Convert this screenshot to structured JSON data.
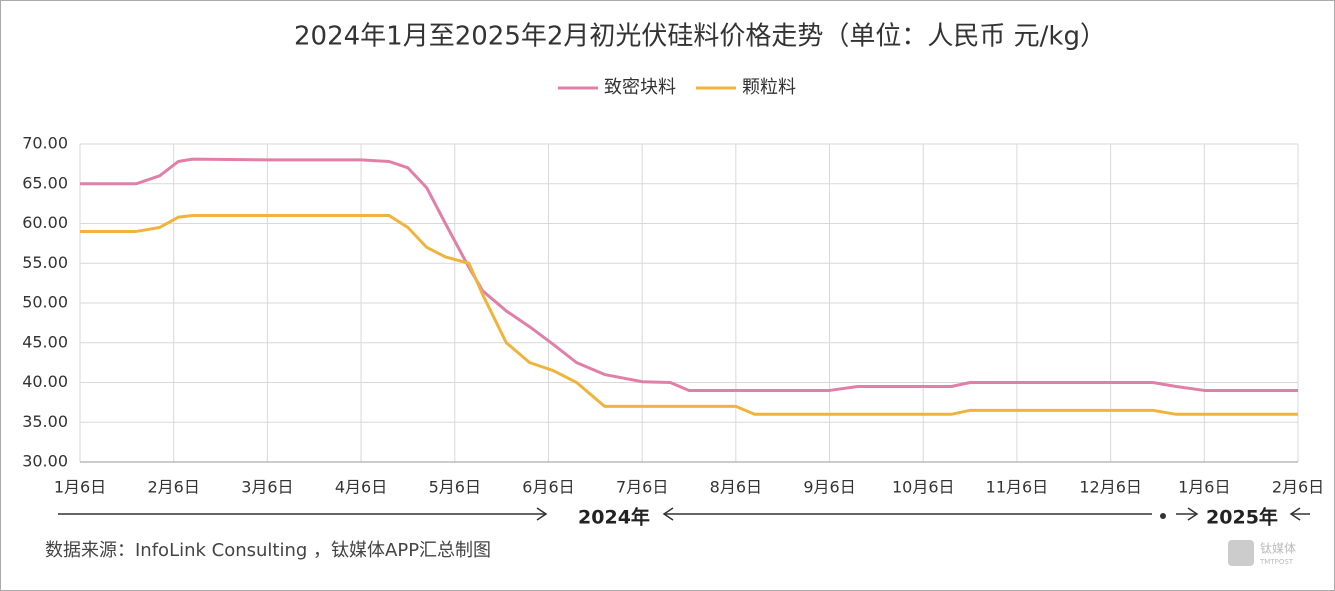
{
  "chart_data": {
    "type": "line",
    "title": "2024年1月至2025年2月初光伏硅料价格走势（单位：人民币 元/kg）",
    "x": [
      0,
      0.6,
      0.85,
      1.05,
      1.2,
      2,
      3,
      3.3,
      3.5,
      3.7,
      3.9,
      4.15,
      4.3,
      4.55,
      4.8,
      5.05,
      5.3,
      5.6,
      6,
      6.3,
      6.5,
      7,
      7.2,
      8,
      8.3,
      9,
      9.3,
      9.5,
      10,
      11,
      11.45,
      11.7,
      12,
      13
    ],
    "series": [
      {
        "name": "致密块料",
        "color": "#e17fa9",
        "values": [
          65,
          65,
          66,
          67.8,
          68.1,
          68,
          68,
          67.8,
          67,
          64.5,
          60,
          54.5,
          51.5,
          49,
          47,
          44.8,
          42.5,
          41,
          40.1,
          40,
          39,
          39,
          39,
          39,
          39.5,
          39.5,
          39.5,
          40,
          40,
          40,
          40,
          39.5,
          39,
          39
        ]
      },
      {
        "name": "颗粒料",
        "color": "#f0b43c",
        "values": [
          59,
          59,
          59.5,
          60.8,
          61,
          61,
          61,
          61,
          59.5,
          57,
          55.8,
          55,
          51,
          45,
          42.5,
          41.5,
          40,
          37,
          37,
          37,
          37,
          37,
          36,
          36,
          36,
          36,
          36,
          36.5,
          36.5,
          36.5,
          36.5,
          36,
          36,
          36
        ]
      }
    ],
    "xlim": [
      0,
      13
    ],
    "xticks": [
      {
        "value": 0,
        "label": "1月6日"
      },
      {
        "value": 1,
        "label": "2月6日"
      },
      {
        "value": 2,
        "label": "3月6日"
      },
      {
        "value": 3,
        "label": "4月6日"
      },
      {
        "value": 4,
        "label": "5月6日"
      },
      {
        "value": 5,
        "label": "6月6日"
      },
      {
        "value": 6,
        "label": "7月6日"
      },
      {
        "value": 7,
        "label": "8月6日"
      },
      {
        "value": 8,
        "label": "9月6日"
      },
      {
        "value": 9,
        "label": "10月6日"
      },
      {
        "value": 10,
        "label": "11月6日"
      },
      {
        "value": 11,
        "label": "12月6日"
      },
      {
        "value": 12,
        "label": "1月6日"
      },
      {
        "value": 13,
        "label": "2月6日"
      }
    ],
    "ylim": [
      30,
      70
    ],
    "yticks": [
      {
        "value": 30,
        "label": "30.00"
      },
      {
        "value": 35,
        "label": "35.00"
      },
      {
        "value": 40,
        "label": "40.00"
      },
      {
        "value": 45,
        "label": "45.00"
      },
      {
        "value": 50,
        "label": "50.00"
      },
      {
        "value": 55,
        "label": "55.00"
      },
      {
        "value": 60,
        "label": "60.00"
      },
      {
        "value": 65,
        "label": "65.00"
      },
      {
        "value": 70,
        "label": "70.00"
      }
    ],
    "grid": true,
    "annotations": {
      "year1": "2024年",
      "year2": "2025年",
      "source": "数据来源：InfoLink Consulting ，钛媒体APP汇总制图",
      "watermark": "钛媒体",
      "watermark_sub": "TMTPOST"
    }
  }
}
